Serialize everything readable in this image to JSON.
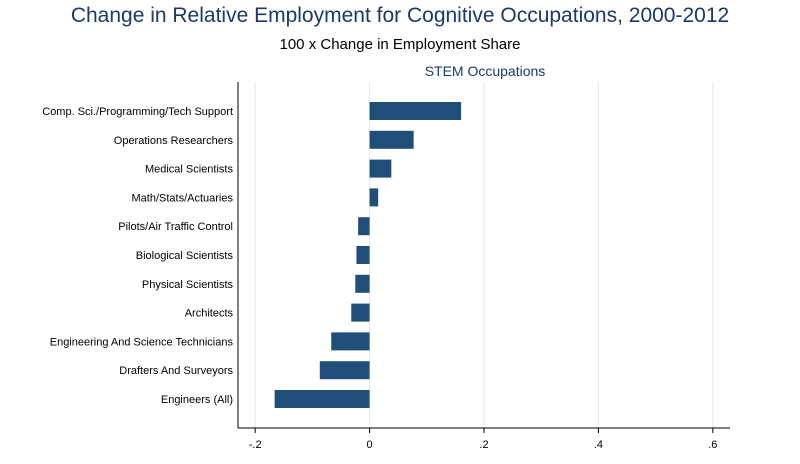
{
  "chart_data": {
    "type": "bar",
    "orientation": "horizontal",
    "title": "Change in Relative Employment for Cognitive Occupations, 2000-2012",
    "subtitle": "100 x Change in Employment Share",
    "panel_label": "STEM Occupations",
    "categories": [
      "Comp. Sci./Programming/Tech Support",
      "Operations Researchers",
      "Medical Scientists",
      "Math/Stats/Actuaries",
      "Pilots/Air Traffic Control",
      "Biological Scientists",
      "Physical Scientists",
      "Architects",
      "Engineering And Science Technicians",
      "Drafters And Surveyors",
      "Engineers (All)"
    ],
    "values": [
      0.16,
      0.077,
      0.038,
      0.015,
      -0.02,
      -0.023,
      -0.025,
      -0.032,
      -0.067,
      -0.087,
      -0.166
    ],
    "xlim": [
      -0.23,
      0.63
    ],
    "xticks": [
      -0.2,
      0,
      0.2,
      0.4,
      0.6
    ],
    "xtick_labels": [
      "-.2",
      "0",
      ".2",
      ".4",
      ".6"
    ],
    "bar_color": "#1f4e79",
    "grid": true
  }
}
